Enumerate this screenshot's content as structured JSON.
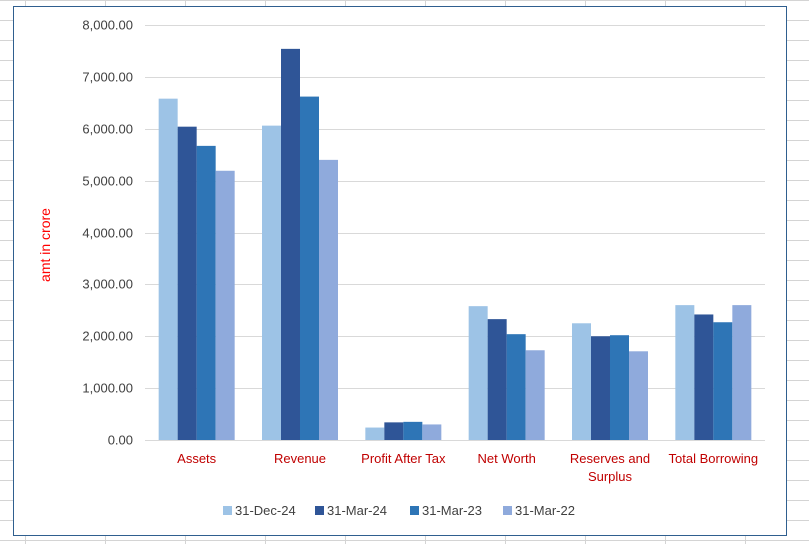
{
  "chart_data": {
    "type": "bar",
    "title": "",
    "xlabel": "",
    "ylabel": "amt in crore",
    "ylim": [
      0,
      8000
    ],
    "yticks": [
      "0.00",
      "1,000.00",
      "2,000.00",
      "3,000.00",
      "4,000.00",
      "5,000.00",
      "6,000.00",
      "7,000.00",
      "8,000.00"
    ],
    "ytick_values": [
      0,
      1000,
      2000,
      3000,
      4000,
      5000,
      6000,
      7000,
      8000
    ],
    "categories": [
      "Assets",
      "Revenue",
      "Profit After Tax",
      "Net Worth",
      "Reserves and Surplus",
      "Total Borrowing"
    ],
    "series": [
      {
        "name": "31-Dec-24",
        "color": "#9dc3e6",
        "values": [
          6580,
          6060,
          240,
          2580,
          2250,
          2600
        ]
      },
      {
        "name": "31-Mar-24",
        "color": "#2f5597",
        "values": [
          6040,
          7540,
          340,
          2330,
          2000,
          2420
        ]
      },
      {
        "name": "31-Mar-23",
        "color": "#2e75b6",
        "values": [
          5670,
          6620,
          350,
          2040,
          2020,
          2270
        ]
      },
      {
        "name": "31-Mar-22",
        "color": "#8faadc",
        "values": [
          5190,
          5400,
          300,
          1730,
          1710,
          2600
        ]
      }
    ],
    "grid": true,
    "legend_position": "bottom",
    "colors": {
      "axis_label": "#ff0000",
      "category_label": "#c00000",
      "tick_label": "#404040",
      "gridline": "#d9d9d9"
    }
  }
}
